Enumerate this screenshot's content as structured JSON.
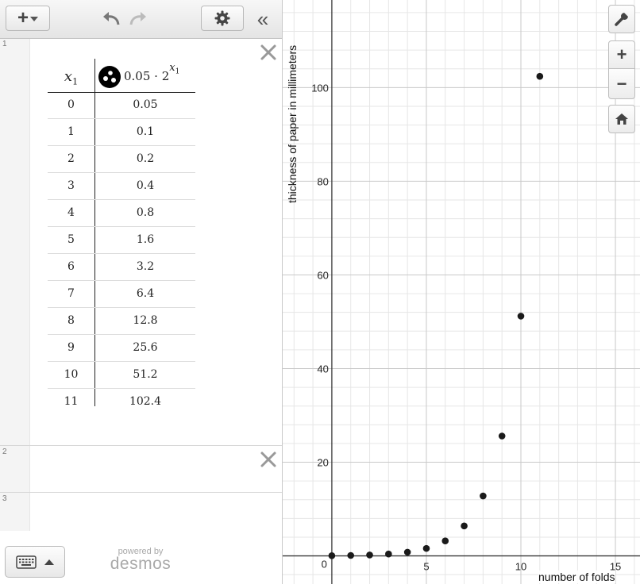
{
  "toolbar": {
    "add_icon": "plus-icon",
    "undo_icon": "undo-icon",
    "redo_icon": "redo-icon",
    "settings_icon": "gear-icon",
    "collapse_label": "«"
  },
  "expressions": [
    {
      "number": "1",
      "type": "table",
      "header_x": "x",
      "header_x_sub": "1",
      "header_y_expr": "0.05 · 2",
      "header_y_exp_var": "x",
      "header_y_exp_sub": "1",
      "point_style_icon": "points-style-icon",
      "rows": [
        {
          "x": "0",
          "y": "0.05"
        },
        {
          "x": "1",
          "y": "0.1"
        },
        {
          "x": "2",
          "y": "0.2"
        },
        {
          "x": "3",
          "y": "0.4"
        },
        {
          "x": "4",
          "y": "0.8"
        },
        {
          "x": "5",
          "y": "1.6"
        },
        {
          "x": "6",
          "y": "3.2"
        },
        {
          "x": "7",
          "y": "6.4"
        },
        {
          "x": "8",
          "y": "12.8"
        },
        {
          "x": "9",
          "y": "25.6"
        },
        {
          "x": "10",
          "y": "51.2"
        },
        {
          "x": "11",
          "y": "102.4"
        }
      ]
    },
    {
      "number": "2",
      "type": "empty"
    },
    {
      "number": "3",
      "type": "empty"
    }
  ],
  "footer": {
    "powered_small": "powered by",
    "powered_brand": "desmos",
    "keyboard_icon": "keyboard-icon"
  },
  "graph_controls": [
    "wrench-icon",
    "zoom-in-icon",
    "zoom-out-icon",
    "home-icon"
  ],
  "chart_data": {
    "type": "scatter",
    "x": [
      0,
      1,
      2,
      3,
      4,
      5,
      6,
      7,
      8,
      9,
      10,
      11
    ],
    "y": [
      0.05,
      0.1,
      0.2,
      0.4,
      0.8,
      1.6,
      3.2,
      6.4,
      12.8,
      25.6,
      51.2,
      102.4
    ],
    "xlabel": "number of folds",
    "ylabel": "thickness of paper in millimeters",
    "xlim": [
      -2.6,
      16.3
    ],
    "ylim": [
      -6,
      118.7
    ],
    "x_ticks": [
      5,
      10,
      15
    ],
    "y_ticks": [
      20,
      40,
      60,
      80,
      100
    ],
    "origin_label": "0",
    "grid": true,
    "point_color": "#1a1a1a"
  }
}
